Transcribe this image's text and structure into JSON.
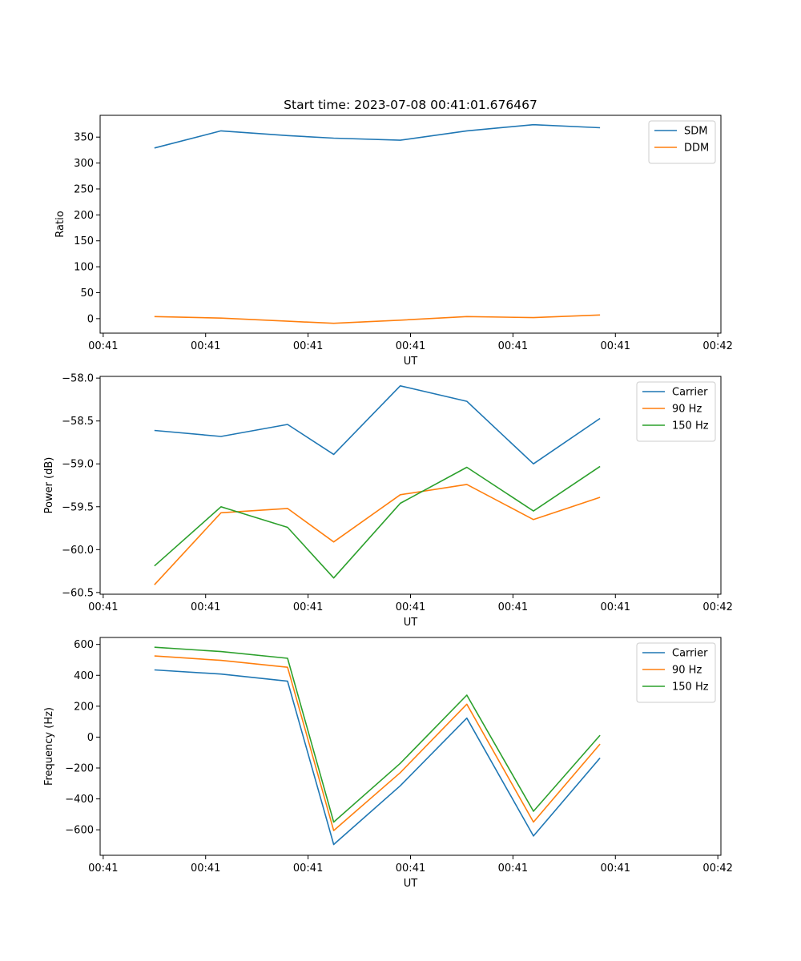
{
  "chart_data": [
    {
      "type": "line",
      "title": "Start time: 2023-07-08 00:41:01.676467",
      "xlabel": "UT",
      "ylabel": "Ratio",
      "x_tick_labels": [
        "00:41",
        "00:41",
        "00:41",
        "00:41",
        "00:41",
        "00:41",
        "00:42"
      ],
      "y_ticks": [
        0,
        50,
        100,
        150,
        200,
        250,
        300,
        350
      ],
      "ylim": [
        -28,
        392
      ],
      "legend_location": "upper right",
      "series": [
        {
          "name": "SDM",
          "color": "#1f77b4",
          "values": [
            329,
            362,
            353,
            348,
            344,
            362,
            374,
            368
          ]
        },
        {
          "name": "DDM",
          "color": "#ff7f0e",
          "values": [
            4,
            1,
            -5,
            -9,
            -3,
            4,
            2,
            7
          ]
        }
      ]
    },
    {
      "type": "line",
      "title": "",
      "xlabel": "UT",
      "ylabel": "Power (dB)",
      "x_tick_labels": [
        "00:41",
        "00:41",
        "00:41",
        "00:41",
        "00:41",
        "00:41",
        "00:42"
      ],
      "y_ticks": [
        -60.5,
        -60.0,
        -59.5,
        -59.0,
        -58.5,
        -58.0
      ],
      "y_tick_labels": [
        "−60.5",
        "−60.0",
        "−59.5",
        "−59.0",
        "−58.5",
        "−58.0"
      ],
      "ylim": [
        -60.52,
        -57.98
      ],
      "legend_location": "upper right",
      "series": [
        {
          "name": "Carrier",
          "color": "#1f77b4",
          "values": [
            -58.61,
            -58.68,
            -58.54,
            -58.89,
            -58.09,
            -58.27,
            -59.0,
            -58.47
          ]
        },
        {
          "name": "90 Hz",
          "color": "#ff7f0e",
          "values": [
            -60.41,
            -59.57,
            -59.52,
            -59.91,
            -59.36,
            -59.24,
            -59.65,
            -59.39
          ]
        },
        {
          "name": "150 Hz",
          "color": "#2ca02c",
          "values": [
            -60.19,
            -59.5,
            -59.74,
            -60.33,
            -59.46,
            -59.04,
            -59.55,
            -59.03
          ]
        }
      ]
    },
    {
      "type": "line",
      "title": "",
      "xlabel": "UT",
      "ylabel": "Frequency (Hz)",
      "x_tick_labels": [
        "00:41",
        "00:41",
        "00:41",
        "00:41",
        "00:41",
        "00:41",
        "00:42"
      ],
      "y_ticks": [
        -600,
        -400,
        -200,
        0,
        200,
        400,
        600
      ],
      "y_tick_labels": [
        "−600",
        "−400",
        "−200",
        "0",
        "200",
        "400",
        "600"
      ],
      "ylim": [
        -765,
        645
      ],
      "legend_location": "upper right",
      "series": [
        {
          "name": "Carrier",
          "color": "#1f77b4",
          "values": [
            435,
            408,
            362,
            -695,
            -315,
            123,
            -640,
            -135
          ]
        },
        {
          "name": "90 Hz",
          "color": "#ff7f0e",
          "values": [
            525,
            497,
            452,
            -605,
            -230,
            213,
            -550,
            -45
          ]
        },
        {
          "name": "150 Hz",
          "color": "#2ca02c",
          "values": [
            582,
            554,
            510,
            -550,
            -170,
            272,
            -480,
            12
          ]
        }
      ]
    }
  ],
  "x_positions": [
    1.5,
    2.15,
    2.8,
    3.25,
    3.9,
    4.55,
    5.2,
    5.85
  ],
  "x_tick_positions": [
    1,
    2,
    3,
    4,
    5,
    6,
    7
  ],
  "xlim": [
    0.97,
    7.03
  ]
}
